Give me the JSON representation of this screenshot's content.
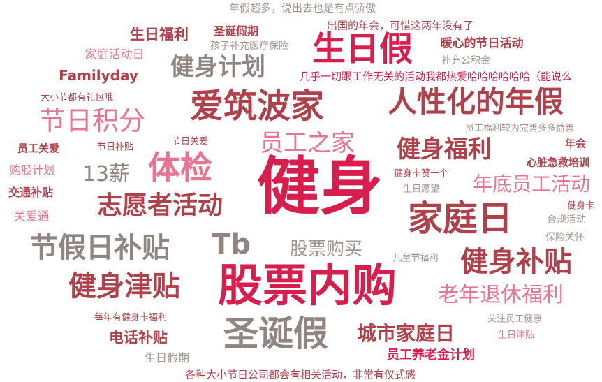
{
  "words": [
    {
      "text": "年假超多，说出去也是有点骄傲",
      "color": "#a09590"
    },
    {
      "text": "出国的年会，可惜这两年没有了",
      "color": "#b0414b"
    },
    {
      "text": "生日福利",
      "color": "#b0414b"
    },
    {
      "text": "圣诞假期",
      "color": "#b0414b"
    },
    {
      "text": "孩子补充医疗保险",
      "color": "#a09590"
    },
    {
      "text": "暖心的节日活动",
      "color": "#b0414b"
    },
    {
      "text": "生日假",
      "color": "#d81e4d"
    },
    {
      "text": "家庭活动日",
      "color": "#e8748f"
    },
    {
      "text": "补充公积金",
      "color": "#a09590"
    },
    {
      "text": "健身计划",
      "color": "#8f8581"
    },
    {
      "text": "Familyday",
      "color": "#b0414b"
    },
    {
      "text": "几乎一切跟工作无关的活动我都热爱哈哈哈哈哈哈（能说么",
      "color": "#d81e4d"
    },
    {
      "text": "大小节都有礼包哦",
      "color": "#b0414b"
    },
    {
      "text": "爱筑波家",
      "color": "#b0414b"
    },
    {
      "text": "人性化的年假",
      "color": "#b0414b"
    },
    {
      "text": "节日积分",
      "color": "#e8748f"
    },
    {
      "text": "员工福利较为完善多多益善",
      "color": "#a09590"
    },
    {
      "text": "员工之家",
      "color": "#e8748f"
    },
    {
      "text": "员工关爱",
      "color": "#b0414b"
    },
    {
      "text": "节日补贴",
      "color": "#b0414b"
    },
    {
      "text": "节日关爱",
      "color": "#b0414b"
    },
    {
      "text": "健身福利",
      "color": "#b0414b"
    },
    {
      "text": "年会",
      "color": "#b0414b"
    },
    {
      "text": "体检",
      "color": "#e8748f"
    },
    {
      "text": "心脏急救培训",
      "color": "#b0414b"
    },
    {
      "text": "购股计划",
      "color": "#e8748f"
    },
    {
      "text": "13薪",
      "color": "#8f8581"
    },
    {
      "text": "健身",
      "color": "#d81e4d"
    },
    {
      "text": "健身卡赞一个",
      "color": "#b0414b"
    },
    {
      "text": "年底员工活动",
      "color": "#e8748f"
    },
    {
      "text": "交通补贴",
      "color": "#b0414b"
    },
    {
      "text": "生日愿望",
      "color": "#a09590"
    },
    {
      "text": "志愿者活动",
      "color": "#b0414b"
    },
    {
      "text": "健身卡",
      "color": "#b0414b"
    },
    {
      "text": "家庭日",
      "color": "#b0414b"
    },
    {
      "text": "关爱通",
      "color": "#e8748f"
    },
    {
      "text": "合规活动",
      "color": "#a09590"
    },
    {
      "text": "保险关怀",
      "color": "#a09590"
    },
    {
      "text": "Tb",
      "color": "#8f8581"
    },
    {
      "text": "节假日补贴",
      "color": "#8f8581"
    },
    {
      "text": "股票购买",
      "color": "#a09590"
    },
    {
      "text": "儿童节福利",
      "color": "#a09590"
    },
    {
      "text": "健身补贴",
      "color": "#b0414b"
    },
    {
      "text": "健身津贴",
      "color": "#b0414b"
    },
    {
      "text": "股票内购",
      "color": "#d81e4d"
    },
    {
      "text": "老年退休福利",
      "color": "#e8748f"
    },
    {
      "text": "每年有健身卡福利",
      "color": "#b0414b"
    },
    {
      "text": "圣诞假",
      "color": "#8f8581"
    },
    {
      "text": "关注员工健康",
      "color": "#a09590"
    },
    {
      "text": "城市家庭日",
      "color": "#b0414b"
    },
    {
      "text": "电话补贴",
      "color": "#b0414b"
    },
    {
      "text": "生日津贴",
      "color": "#e8748f"
    },
    {
      "text": "生日假期",
      "color": "#a09590"
    },
    {
      "text": "员工养老金计划",
      "color": "#d81e4d"
    },
    {
      "text": "各种大小节日公司都会有相关活动，非常有仪式感",
      "color": "#b0414b"
    }
  ]
}
